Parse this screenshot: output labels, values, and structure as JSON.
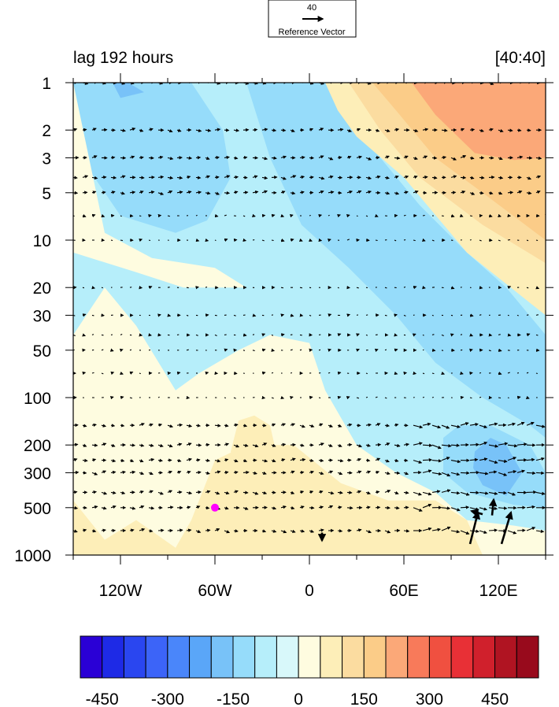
{
  "chart_data": {
    "type": "heatmap",
    "title_left": "lag 192 hours",
    "title_right": "[40:40]",
    "reference_vector": {
      "magnitude": "40",
      "label": "Reference Vector"
    },
    "x_axis": {
      "range": [
        -150,
        150
      ],
      "tick_values": [
        -120,
        -60,
        0,
        60,
        120
      ],
      "tick_labels": [
        "120W",
        "60W",
        "0",
        "60E",
        "120E"
      ],
      "minor_step": 30
    },
    "y_axis": {
      "scale": "log",
      "reversed": true,
      "range": [
        1,
        1000
      ],
      "tick_values": [
        1,
        2,
        3,
        5,
        10,
        20,
        30,
        50,
        100,
        200,
        300,
        500,
        1000
      ],
      "tick_labels": [
        "1",
        "2",
        "3",
        "5",
        "10",
        "20",
        "30",
        "50",
        "100",
        "200",
        "300",
        "500",
        "1000"
      ]
    },
    "colorbar": {
      "levels": [
        -500,
        -450,
        -400,
        -350,
        -300,
        -250,
        -200,
        -150,
        -100,
        -50,
        0,
        50,
        100,
        150,
        200,
        250,
        300,
        350,
        400,
        450,
        500
      ],
      "colors": [
        "#2a00d6",
        "#1e2ae6",
        "#2a46f0",
        "#3c64f8",
        "#4a86fa",
        "#5aa6f8",
        "#78c2f8",
        "#96dcfa",
        "#b6eefa",
        "#d8f8fa",
        "#fefce0",
        "#fdeeb8",
        "#fbdca0",
        "#fbcc88",
        "#fba878",
        "#f87a5a",
        "#f05040",
        "#e83036",
        "#d0202c",
        "#b01422",
        "#980a1c"
      ],
      "tick_labels": [
        "-450",
        "-300",
        "-150",
        "0",
        "150",
        "300",
        "450"
      ],
      "tick_values": [
        -450,
        -300,
        -150,
        0,
        150,
        300,
        450
      ]
    },
    "base_fill": 0,
    "features": [
      {
        "value": -60,
        "points": [
          [
            -150,
            1
          ],
          [
            -80,
            1
          ],
          [
            -45,
            2
          ],
          [
            -25,
            6
          ],
          [
            -8,
            14
          ],
          [
            20,
            30
          ],
          [
            45,
            60
          ],
          [
            75,
            150
          ],
          [
            100,
            300
          ],
          [
            150,
            500
          ],
          [
            150,
            1
          ],
          [
            -150,
            1
          ]
        ]
      },
      {
        "value": -60,
        "points": [
          [
            -150,
            1
          ],
          [
            -150,
            40
          ],
          [
            -130,
            20
          ],
          [
            -100,
            15
          ],
          [
            -70,
            12
          ],
          [
            -40,
            8
          ],
          [
            -20,
            1
          ]
        ]
      },
      {
        "value": -60,
        "points": [
          [
            -150,
            1
          ],
          [
            -150,
            3
          ],
          [
            -130,
            20
          ],
          [
            -110,
            35
          ],
          [
            -85,
            90
          ],
          [
            -70,
            70
          ],
          [
            -45,
            50
          ],
          [
            -25,
            40
          ],
          [
            0,
            45
          ],
          [
            10,
            90
          ],
          [
            30,
            200
          ],
          [
            55,
            300
          ],
          [
            80,
            400
          ],
          [
            100,
            600
          ],
          [
            130,
            650
          ],
          [
            150,
            700
          ],
          [
            150,
            1
          ],
          [
            -150,
            1
          ]
        ]
      },
      {
        "value": -140,
        "points": [
          [
            -150,
            1
          ],
          [
            -145,
            3
          ],
          [
            -120,
            7
          ],
          [
            -85,
            9
          ],
          [
            -65,
            7.5
          ],
          [
            -50,
            4
          ],
          [
            -55,
            2
          ],
          [
            -75,
            1
          ]
        ]
      },
      {
        "value": -140,
        "points": [
          [
            -40,
            1
          ],
          [
            -25,
            3
          ],
          [
            -5,
            8
          ],
          [
            25,
            15
          ],
          [
            55,
            30
          ],
          [
            80,
            60
          ],
          [
            110,
            100
          ],
          [
            140,
            150
          ],
          [
            150,
            180
          ],
          [
            150,
            40
          ],
          [
            125,
            20
          ],
          [
            100,
            12
          ],
          [
            70,
            6
          ],
          [
            45,
            3
          ],
          [
            15,
            1
          ]
        ]
      },
      {
        "value": -140,
        "points": [
          [
            85,
            180
          ],
          [
            95,
            150
          ],
          [
            115,
            150
          ],
          [
            140,
            200
          ],
          [
            150,
            300
          ],
          [
            150,
            500
          ],
          [
            130,
            480
          ],
          [
            100,
            400
          ],
          [
            85,
            300
          ]
        ]
      },
      {
        "value": -200,
        "points": [
          [
            -125,
            1
          ],
          [
            -115,
            1
          ],
          [
            -105,
            1.15
          ],
          [
            -120,
            1.25
          ]
        ]
      },
      {
        "value": -200,
        "points": [
          [
            105,
            220
          ],
          [
            115,
            180
          ],
          [
            125,
            200
          ],
          [
            135,
            300
          ],
          [
            125,
            420
          ],
          [
            110,
            360
          ],
          [
            104,
            280
          ]
        ]
      },
      {
        "value": 30,
        "points": [
          [
            -150,
            1
          ],
          [
            -150,
            12
          ],
          [
            -110,
            16
          ],
          [
            -80,
            20
          ],
          [
            -40,
            20
          ],
          [
            -60,
            15
          ],
          [
            -100,
            13
          ],
          [
            -130,
            9
          ]
        ]
      },
      {
        "value": 60,
        "points": [
          [
            -150,
            1000
          ],
          [
            -150,
            450
          ],
          [
            -130,
            800
          ],
          [
            -110,
            600
          ],
          [
            -85,
            900
          ],
          [
            -75,
            600
          ],
          [
            -60,
            250
          ],
          [
            -40,
            200
          ],
          [
            -10,
            200
          ],
          [
            20,
            350
          ],
          [
            50,
            450
          ],
          [
            80,
            450
          ],
          [
            100,
            600
          ],
          [
            110,
            1000
          ]
        ]
      },
      {
        "value": 90,
        "points": [
          [
            -50,
            220
          ],
          [
            -45,
            140
          ],
          [
            -35,
            130
          ],
          [
            -25,
            150
          ],
          [
            -20,
            250
          ],
          [
            -25,
            380
          ],
          [
            -35,
            450
          ],
          [
            -45,
            350
          ]
        ]
      },
      {
        "value": 50,
        "points": [
          [
            10,
            1
          ],
          [
            18,
            1.5
          ],
          [
            30,
            2.2
          ],
          [
            60,
            4
          ],
          [
            100,
            12
          ],
          [
            140,
            25
          ],
          [
            150,
            30
          ],
          [
            150,
            1
          ]
        ]
      },
      {
        "value": 120,
        "points": [
          [
            25,
            1
          ],
          [
            45,
            2
          ],
          [
            70,
            4
          ],
          [
            110,
            8
          ],
          [
            150,
            14
          ],
          [
            150,
            1
          ]
        ]
      },
      {
        "value": 180,
        "points": [
          [
            40,
            1
          ],
          [
            55,
            1.5
          ],
          [
            80,
            3
          ],
          [
            110,
            5
          ],
          [
            150,
            10
          ],
          [
            150,
            1
          ]
        ]
      },
      {
        "value": 240,
        "points": [
          [
            65,
            1
          ],
          [
            80,
            1.6
          ],
          [
            105,
            2.8
          ],
          [
            130,
            3.1
          ],
          [
            150,
            3.0
          ],
          [
            150,
            1
          ]
        ]
      }
    ],
    "vector_rows": [
      1,
      2,
      3,
      4,
      5,
      7,
      10,
      20,
      30,
      40,
      50,
      70,
      100,
      150,
      200,
      250,
      300,
      400,
      500,
      700
    ],
    "vector_cols_start": -150,
    "vector_cols_step": 6,
    "large_vectors": [
      {
        "lon": 102,
        "lev": 850,
        "u": 10,
        "v": 40
      },
      {
        "lon": 122,
        "lev": 850,
        "u": 12,
        "v": 40
      },
      {
        "lon": 110,
        "lev": 550,
        "u": -14,
        "v": 4
      },
      {
        "lon": 116,
        "lev": 560,
        "u": 2,
        "v": 20
      },
      {
        "lon": 8,
        "lev": 720,
        "u": 0,
        "v": -10
      }
    ],
    "marker": {
      "lon": -60,
      "lev": 500,
      "color": "#ff00ff"
    }
  }
}
